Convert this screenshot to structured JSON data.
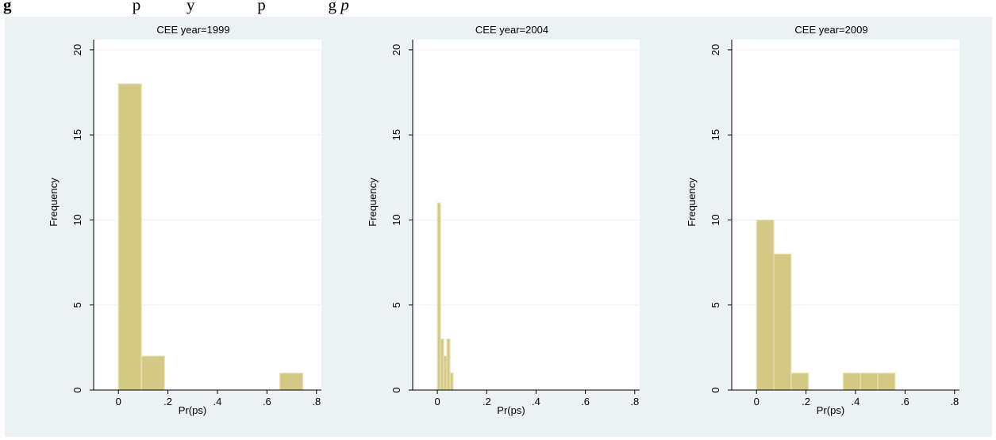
{
  "caption": {
    "prefix": "g",
    "middle": "                             p           y               p               g ",
    "tail": "p"
  },
  "colors": {
    "outer_bg": "#eaf2f3",
    "plot_bg": "#ffffff",
    "bar_fill": "#d3c985",
    "bar_edge": "#e8e2b6",
    "grid": "#eaf2f3",
    "axis": "#000000"
  },
  "chart_data": [
    {
      "type": "bar",
      "title": "CEE year=1999",
      "xlabel": "Pr(ps)",
      "ylabel": "Frequency",
      "xlim": [
        -0.1,
        0.82
      ],
      "ylim": [
        0,
        20.6
      ],
      "xticks": [
        0,
        0.2,
        0.4,
        0.6,
        0.8
      ],
      "xticklabels": [
        "0",
        ".2",
        ".4",
        ".6",
        ".8"
      ],
      "yticks": [
        0,
        5,
        10,
        15,
        20
      ],
      "yticklabels": [
        "0",
        "5",
        "10",
        "15",
        "20"
      ],
      "grid": true,
      "bins": [
        {
          "x0": 0.0,
          "x1": 0.093,
          "value": 18
        },
        {
          "x0": 0.093,
          "x1": 0.186,
          "value": 2
        },
        {
          "x0": 0.652,
          "x1": 0.745,
          "value": 1
        }
      ]
    },
    {
      "type": "bar",
      "title": "CEE year=2004",
      "xlabel": "Pr(ps)",
      "ylabel": "Frequency",
      "xlim": [
        -0.1,
        0.82
      ],
      "ylim": [
        0,
        20.6
      ],
      "xticks": [
        0,
        0.2,
        0.4,
        0.6,
        0.8
      ],
      "xticklabels": [
        "0",
        ".2",
        ".4",
        ".6",
        ".8"
      ],
      "yticks": [
        0,
        5,
        10,
        15,
        20
      ],
      "yticklabels": [
        "0",
        "5",
        "10",
        "15",
        "20"
      ],
      "grid": true,
      "bins": [
        {
          "x0": 0.0,
          "x1": 0.0128,
          "value": 11
        },
        {
          "x0": 0.0128,
          "x1": 0.0256,
          "value": 3
        },
        {
          "x0": 0.0256,
          "x1": 0.0384,
          "value": 2
        },
        {
          "x0": 0.0384,
          "x1": 0.0512,
          "value": 3
        },
        {
          "x0": 0.0512,
          "x1": 0.064,
          "value": 1
        }
      ]
    },
    {
      "type": "bar",
      "title": "CEE year=2009",
      "xlabel": "Pr(ps)",
      "ylabel": "Frequency",
      "xlim": [
        -0.1,
        0.82
      ],
      "ylim": [
        0,
        20.6
      ],
      "xticks": [
        0,
        0.2,
        0.4,
        0.6,
        0.8
      ],
      "xticklabels": [
        "0",
        ".2",
        ".4",
        ".6",
        ".8"
      ],
      "yticks": [
        0,
        5,
        10,
        15,
        20
      ],
      "yticklabels": [
        "0",
        "5",
        "10",
        "15",
        "20"
      ],
      "grid": true,
      "bins": [
        {
          "x0": 0.0,
          "x1": 0.07,
          "value": 10
        },
        {
          "x0": 0.07,
          "x1": 0.14,
          "value": 8
        },
        {
          "x0": 0.14,
          "x1": 0.21,
          "value": 1
        },
        {
          "x0": 0.35,
          "x1": 0.42,
          "value": 1
        },
        {
          "x0": 0.42,
          "x1": 0.49,
          "value": 1
        },
        {
          "x0": 0.49,
          "x1": 0.56,
          "value": 1
        }
      ]
    }
  ]
}
